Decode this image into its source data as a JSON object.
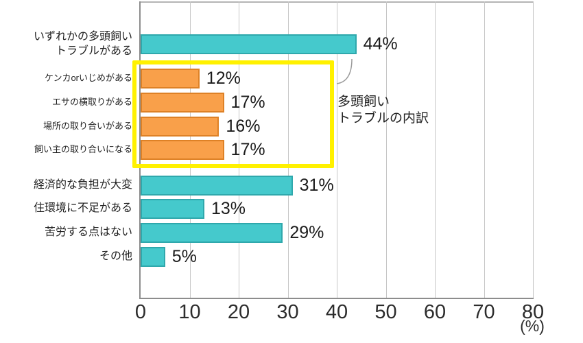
{
  "chart_data": {
    "type": "bar",
    "orientation": "horizontal",
    "xlabel": "(%)",
    "x_unit_label": "(%)",
    "xlim": [
      0,
      80
    ],
    "grid": true,
    "xticks": [
      "0",
      "10",
      "20",
      "30",
      "40",
      "50",
      "60",
      "70",
      "80"
    ],
    "bars": [
      {
        "label": "いずれかの多頭飼い\nトラブルがある",
        "value": 44,
        "value_label": "44%",
        "group": "total",
        "color": "teal"
      },
      {
        "label": "ケンカorいじめがある",
        "value": 12,
        "value_label": "12%",
        "group": "breakdown",
        "color": "orange"
      },
      {
        "label": "エサの横取りがある",
        "value": 17,
        "value_label": "17%",
        "group": "breakdown",
        "color": "orange"
      },
      {
        "label": "場所の取り合いがある",
        "value": 16,
        "value_label": "16%",
        "group": "breakdown",
        "color": "orange"
      },
      {
        "label": "飼い主の取り合いになる",
        "value": 17,
        "value_label": "17%",
        "group": "breakdown",
        "color": "orange"
      },
      {
        "label": "経済的な負担が大変",
        "value": 31,
        "value_label": "31%",
        "group": "total",
        "color": "teal"
      },
      {
        "label": "住環境に不足がある",
        "value": 13,
        "value_label": "13%",
        "group": "total",
        "color": "teal"
      },
      {
        "label": "苦労する点はない",
        "value": 29,
        "value_label": "29%",
        "group": "total",
        "color": "teal"
      },
      {
        "label": "その他",
        "value": 5,
        "value_label": "5%",
        "group": "total",
        "color": "teal"
      }
    ],
    "annotation": {
      "text": "多頭飼い\nトラブルの内訳"
    },
    "colors": {
      "teal": "#45C9CC",
      "teal_border": "#2FA8AC",
      "orange": "#F9A04A",
      "orange_border": "#DE8126",
      "highlight_box": "#FFF100"
    }
  }
}
